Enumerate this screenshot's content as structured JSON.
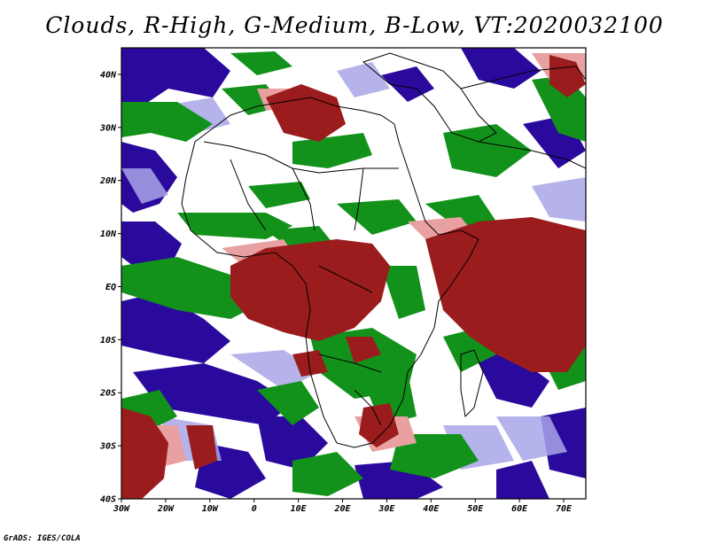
{
  "title": "Clouds, R-High, G-Medium, B-Low, VT:2020032100",
  "footer": "GrADS: IGES/COLA",
  "map": {
    "lat_ticks": [
      "40N",
      "30N",
      "20N",
      "10N",
      "EQ",
      "10S",
      "20S",
      "30S",
      "40S"
    ],
    "lon_ticks": [
      "30W",
      "20W",
      "10W",
      "0",
      "10E",
      "20E",
      "30E",
      "40E",
      "50E",
      "60E",
      "70E"
    ],
    "extent": {
      "lon_min": -30,
      "lon_max": 75,
      "lat_min": -40,
      "lat_max": 45
    },
    "colors": {
      "high": "#9b1c1c",
      "high_light": "#e8a0a0",
      "medium": "#12921a",
      "low": "#2a0a9c",
      "low_light": "#a9a6e8",
      "background": "#ffffff"
    }
  }
}
